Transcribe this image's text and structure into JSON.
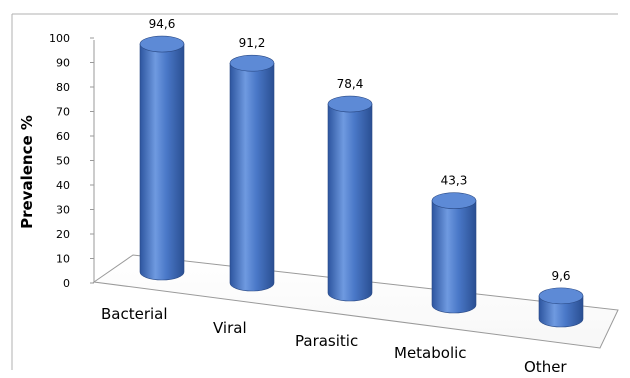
{
  "chart_data": {
    "type": "bar",
    "style": "3d-cylinder",
    "title": "",
    "xlabel": "",
    "ylabel": "Prevalence %",
    "ylim": [
      0,
      100
    ],
    "yticks": [
      0,
      10,
      20,
      30,
      40,
      50,
      60,
      70,
      80,
      90,
      100
    ],
    "categories": [
      "Bacterial",
      "Viral",
      "Parasitic",
      "Metabolic",
      "Other"
    ],
    "values": [
      94.6,
      91.2,
      78.4,
      43.3,
      9.6
    ],
    "value_labels": [
      "94,6",
      "91,2",
      "78,4",
      "43,3",
      "9,6"
    ],
    "bar_color": "#4472c4",
    "grid": false,
    "legend": "none"
  }
}
